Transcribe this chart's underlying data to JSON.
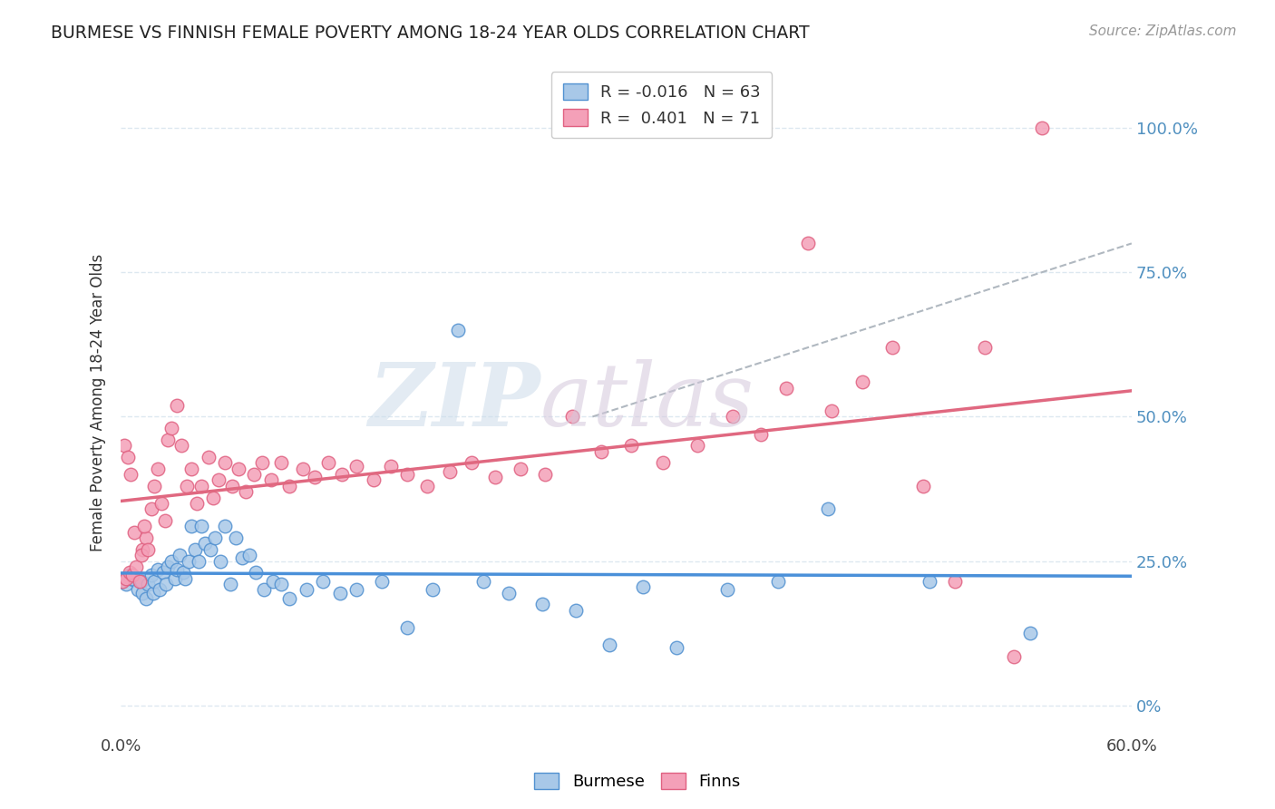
{
  "title": "BURMESE VS FINNISH FEMALE POVERTY AMONG 18-24 YEAR OLDS CORRELATION CHART",
  "source": "Source: ZipAtlas.com",
  "ylabel": "Female Poverty Among 18-24 Year Olds",
  "legend_burmese_r": "-0.016",
  "legend_burmese_n": "63",
  "legend_finns_r": "0.401",
  "legend_finns_n": "71",
  "burmese_color": "#a8c8e8",
  "finns_color": "#f4a0b8",
  "burmese_edge_color": "#5090d0",
  "finns_edge_color": "#e06080",
  "burmese_line_color": "#4a90d9",
  "finns_line_color": "#e06880",
  "xlim": [
    0.0,
    0.6
  ],
  "ylim": [
    -0.05,
    1.1
  ],
  "yticks": [
    0.0,
    0.25,
    0.5,
    0.75,
    1.0
  ],
  "ytick_labels": [
    "0%",
    "25.0%",
    "50.0%",
    "75.0%",
    "100.0%"
  ],
  "right_ytick_labels": [
    "0%",
    "25.0%",
    "50.0%",
    "75.0%",
    "100.0%"
  ],
  "grid_color": "#dde8f0",
  "right_ytick_color": "#5090c0",
  "burmese_x": [
    0.001,
    0.003,
    0.005,
    0.006,
    0.008,
    0.01,
    0.012,
    0.013,
    0.015,
    0.016,
    0.018,
    0.019,
    0.02,
    0.022,
    0.023,
    0.025,
    0.027,
    0.028,
    0.03,
    0.032,
    0.033,
    0.035,
    0.037,
    0.038,
    0.04,
    0.042,
    0.044,
    0.046,
    0.048,
    0.05,
    0.053,
    0.056,
    0.059,
    0.062,
    0.065,
    0.068,
    0.072,
    0.076,
    0.08,
    0.085,
    0.09,
    0.095,
    0.1,
    0.11,
    0.12,
    0.13,
    0.14,
    0.155,
    0.17,
    0.185,
    0.2,
    0.215,
    0.23,
    0.25,
    0.27,
    0.29,
    0.31,
    0.33,
    0.36,
    0.39,
    0.42,
    0.48,
    0.54
  ],
  "burmese_y": [
    0.215,
    0.21,
    0.225,
    0.22,
    0.218,
    0.2,
    0.215,
    0.195,
    0.185,
    0.21,
    0.225,
    0.195,
    0.215,
    0.235,
    0.2,
    0.23,
    0.21,
    0.24,
    0.25,
    0.22,
    0.235,
    0.26,
    0.23,
    0.22,
    0.25,
    0.31,
    0.27,
    0.25,
    0.31,
    0.28,
    0.27,
    0.29,
    0.25,
    0.31,
    0.21,
    0.29,
    0.255,
    0.26,
    0.23,
    0.2,
    0.215,
    0.21,
    0.185,
    0.2,
    0.215,
    0.195,
    0.2,
    0.215,
    0.135,
    0.2,
    0.65,
    0.215,
    0.195,
    0.175,
    0.165,
    0.105,
    0.205,
    0.1,
    0.2,
    0.215,
    0.34,
    0.215,
    0.125
  ],
  "finns_x": [
    0.001,
    0.003,
    0.005,
    0.007,
    0.009,
    0.011,
    0.013,
    0.015,
    0.018,
    0.02,
    0.022,
    0.024,
    0.026,
    0.028,
    0.03,
    0.033,
    0.036,
    0.039,
    0.042,
    0.045,
    0.048,
    0.052,
    0.055,
    0.058,
    0.062,
    0.066,
    0.07,
    0.074,
    0.079,
    0.084,
    0.089,
    0.095,
    0.1,
    0.108,
    0.115,
    0.123,
    0.131,
    0.14,
    0.15,
    0.16,
    0.17,
    0.182,
    0.195,
    0.208,
    0.222,
    0.237,
    0.252,
    0.268,
    0.285,
    0.303,
    0.322,
    0.342,
    0.363,
    0.38,
    0.395,
    0.408,
    0.422,
    0.44,
    0.458,
    0.476,
    0.495,
    0.513,
    0.53,
    0.547,
    0.002,
    0.004,
    0.006,
    0.008,
    0.012,
    0.014,
    0.016
  ],
  "finns_y": [
    0.215,
    0.22,
    0.23,
    0.225,
    0.24,
    0.215,
    0.27,
    0.29,
    0.34,
    0.38,
    0.41,
    0.35,
    0.32,
    0.46,
    0.48,
    0.52,
    0.45,
    0.38,
    0.41,
    0.35,
    0.38,
    0.43,
    0.36,
    0.39,
    0.42,
    0.38,
    0.41,
    0.37,
    0.4,
    0.42,
    0.39,
    0.42,
    0.38,
    0.41,
    0.395,
    0.42,
    0.4,
    0.415,
    0.39,
    0.415,
    0.4,
    0.38,
    0.405,
    0.42,
    0.395,
    0.41,
    0.4,
    0.5,
    0.44,
    0.45,
    0.42,
    0.45,
    0.5,
    0.47,
    0.55,
    0.8,
    0.51,
    0.56,
    0.62,
    0.38,
    0.215,
    0.62,
    0.085,
    1.0,
    0.45,
    0.43,
    0.4,
    0.3,
    0.26,
    0.31,
    0.27
  ],
  "watermark_zip_color": "#ccdcea",
  "watermark_atlas_color": "#d4c8dc"
}
